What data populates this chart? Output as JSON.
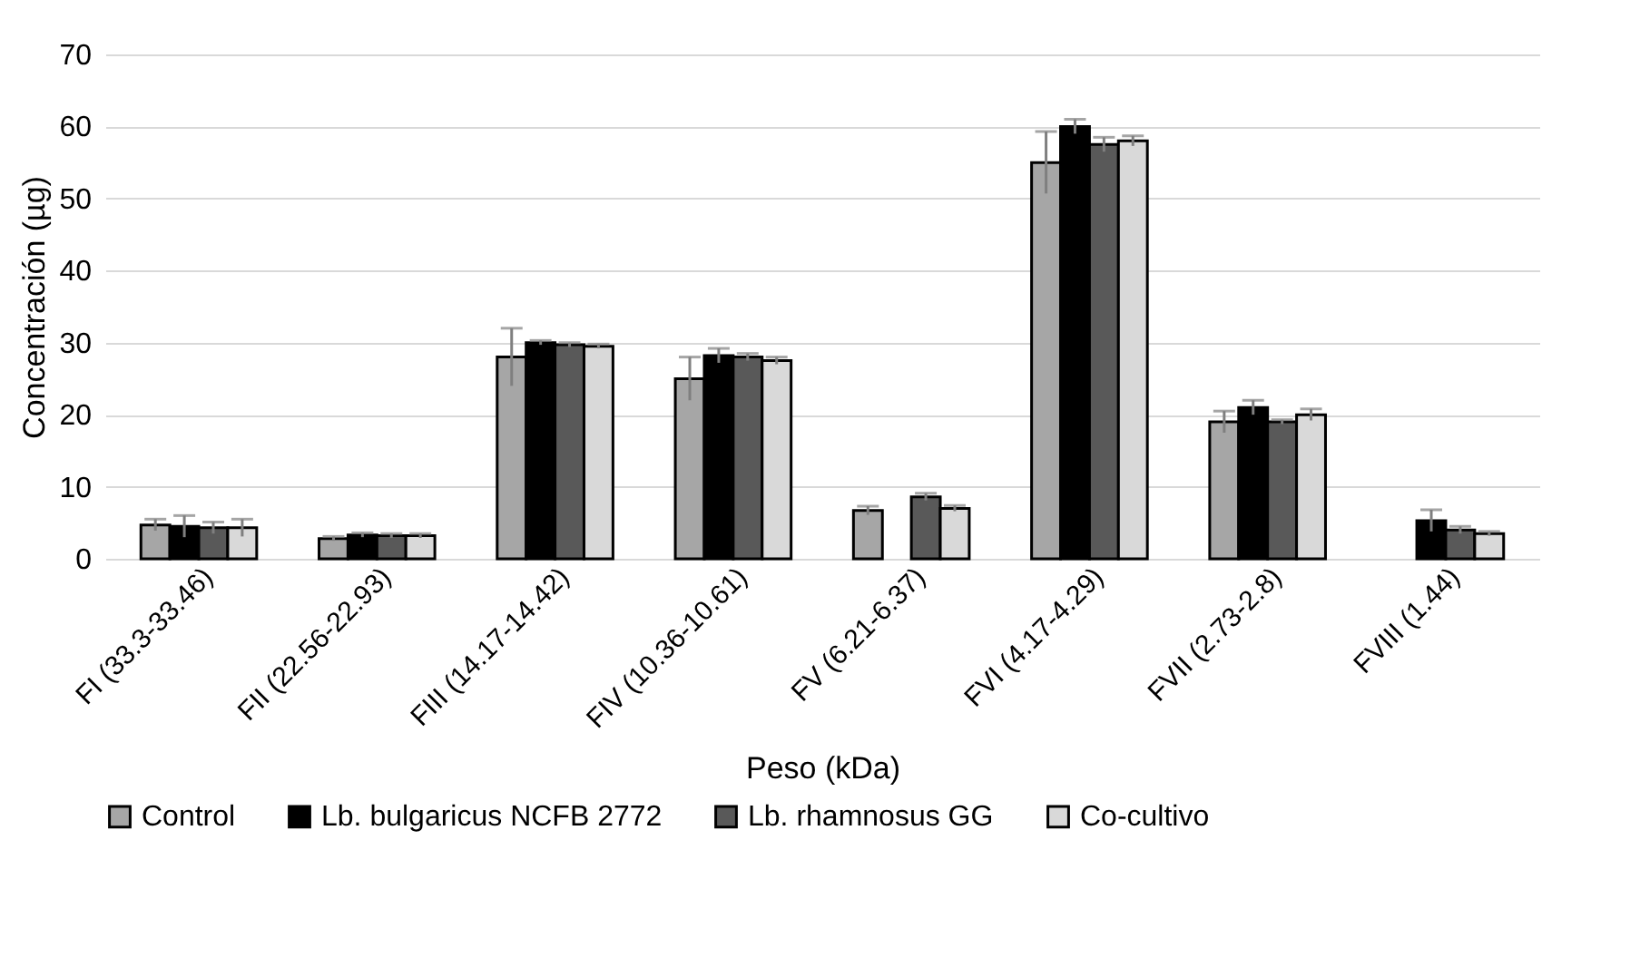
{
  "chart_data": {
    "type": "bar",
    "xlabel": "Peso (kDa)",
    "ylabel": "Concentración (µg)",
    "categories": [
      "FI (33.3-33.46)",
      "FII (22.56-22.93)",
      "FIII (14.17-14.42)",
      "FIV (10.36-10.61)",
      "FV (6.21-6.37)",
      "FVI (4.17-4.29)",
      "FVII (2.73-2.8)",
      "FVIII (1.44)"
    ],
    "series": [
      {
        "name": "Control",
        "color": "#a6a6a6",
        "values": [
          4.7,
          2.8,
          28,
          25,
          6.7,
          55,
          19,
          null
        ],
        "errors": [
          0.8,
          0.3,
          4,
          3,
          0.6,
          4.3,
          1.5,
          null
        ]
      },
      {
        "name": "Lb. bulgaricus NCFB 2772",
        "color": "#000000",
        "values": [
          4.5,
          3.3,
          30,
          28.2,
          null,
          60,
          21,
          5.3
        ],
        "errors": [
          1.5,
          0.3,
          0.3,
          1,
          null,
          1,
          1,
          1.5
        ]
      },
      {
        "name": "Lb. rhamnosus GG",
        "color": "#595959",
        "values": [
          4.3,
          3.2,
          29.7,
          28,
          8.6,
          57.5,
          19,
          4
        ],
        "errors": [
          0.8,
          0.3,
          0.3,
          0.5,
          0.5,
          1,
          0.3,
          0.5
        ]
      },
      {
        "name": "Co-cultivo",
        "color": "#d9d9d9",
        "values": [
          4.3,
          3.2,
          29.5,
          27.5,
          7,
          58,
          20,
          3.5
        ],
        "errors": [
          1.2,
          0.3,
          0.3,
          0.5,
          0.4,
          0.7,
          0.8,
          0.3
        ]
      }
    ],
    "ylim": [
      0,
      70
    ],
    "yticks": [
      0,
      10,
      20,
      30,
      40,
      50,
      60,
      70
    ],
    "grid": "y",
    "legend": "bottom"
  }
}
